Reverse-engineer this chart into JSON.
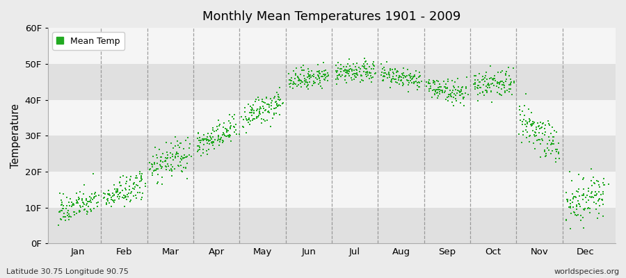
{
  "title": "Monthly Mean Temperatures 1901 - 2009",
  "ylabel": "Temperature",
  "bottom_left_text": "Latitude 30.75 Longitude 90.75",
  "bottom_right_text": "worldspecies.org",
  "legend_label": "Mean Temp",
  "dot_color": "#22AA22",
  "background_color": "#EBEBEB",
  "plot_bg_color": "#EBEBEB",
  "band_color_light": "#F5F5F5",
  "band_color_dark": "#E0E0E0",
  "ylim": [
    0,
    60
  ],
  "ytick_labels": [
    "0F",
    "10F",
    "20F",
    "30F",
    "40F",
    "50F",
    "60F"
  ],
  "ytick_values": [
    0,
    10,
    20,
    30,
    40,
    50,
    60
  ],
  "months": [
    "Jan",
    "Feb",
    "Mar",
    "Apr",
    "May",
    "Jun",
    "Jul",
    "Aug",
    "Sep",
    "Oct",
    "Nov",
    "Dec"
  ],
  "monthly_means": [
    10.5,
    14.5,
    23.0,
    29.5,
    37.0,
    46.0,
    47.5,
    46.0,
    42.5,
    44.5,
    30.5,
    12.5
  ],
  "monthly_trends": [
    3.0,
    4.0,
    4.0,
    5.0,
    5.0,
    1.5,
    0.5,
    -2.0,
    -2.0,
    0.5,
    -5.0,
    4.0
  ],
  "monthly_spreads": [
    2.0,
    2.0,
    2.5,
    2.0,
    2.0,
    1.5,
    1.5,
    1.5,
    1.5,
    2.0,
    3.0,
    3.0
  ],
  "n_years": 109,
  "seed": 42
}
